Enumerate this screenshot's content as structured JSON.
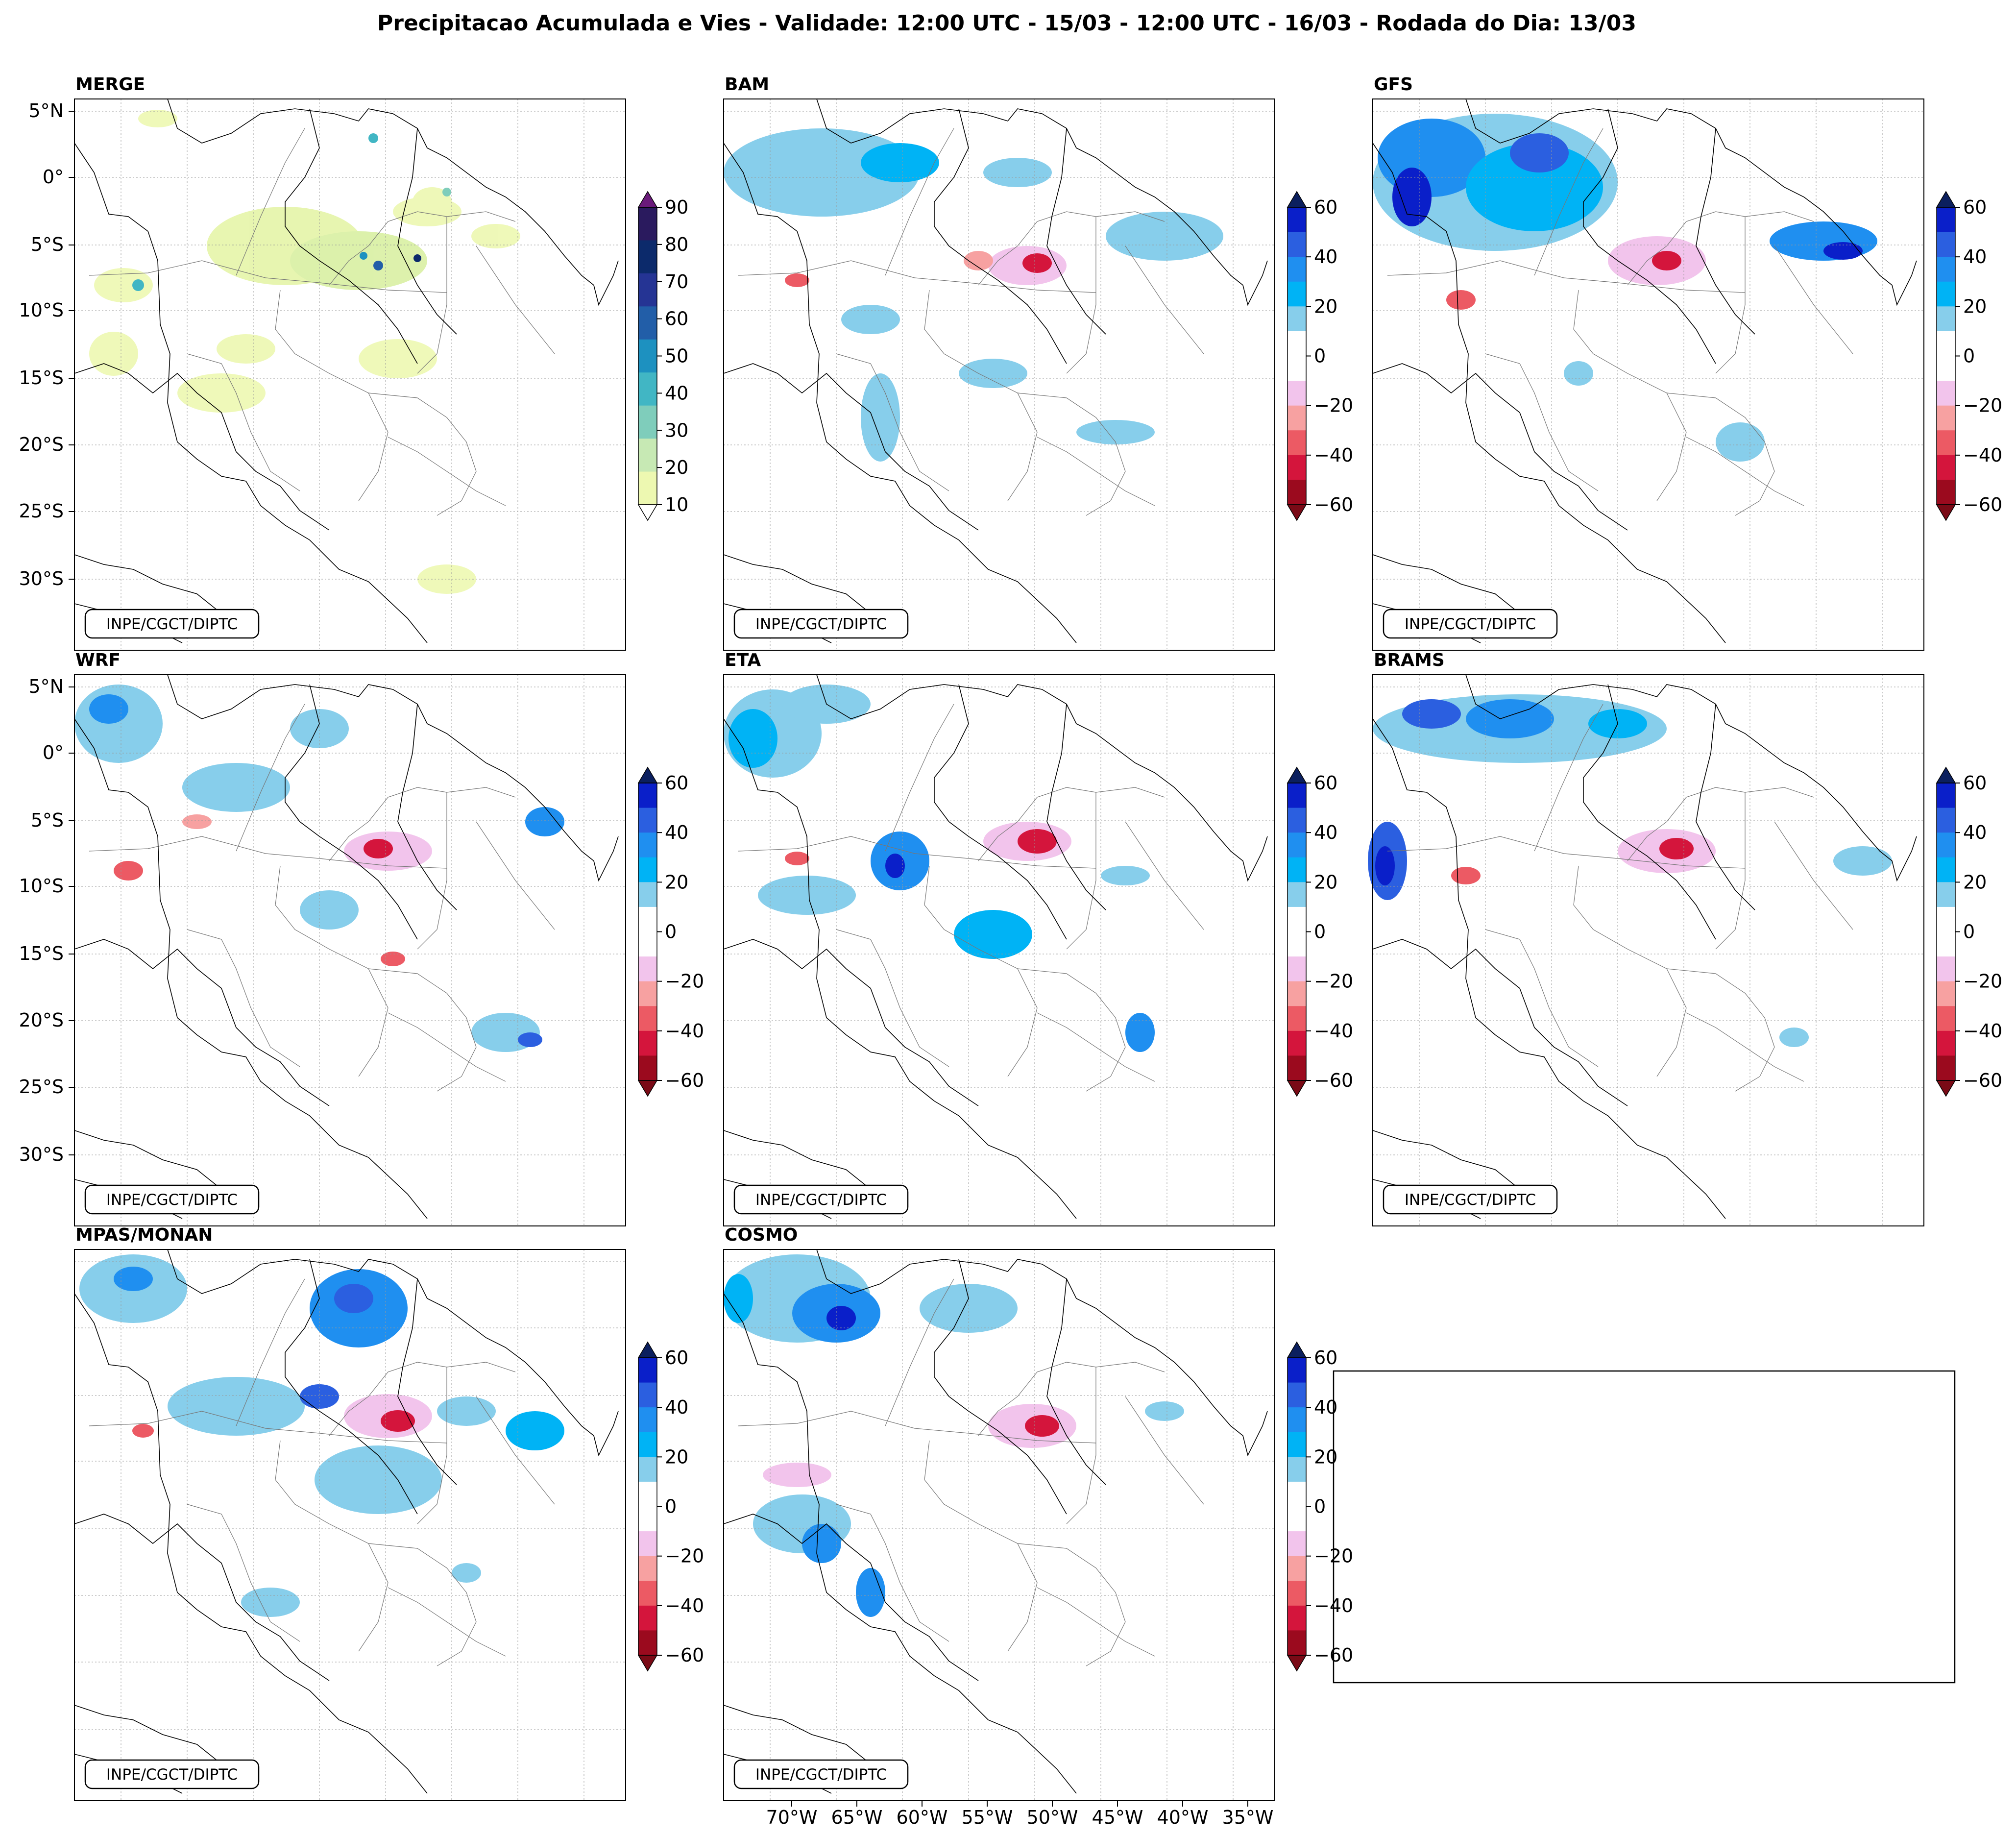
{
  "title": "Precipitacao Acumulada e Vies - Validade: 12:00 UTC - 15/03 - 12:00 UTC - 16/03 - Rodada do Dia: 13/03",
  "credit": "INPE/CGCT/DIPTC",
  "panels": [
    {
      "id": "merge",
      "title": "MERGE",
      "scale": "precip"
    },
    {
      "id": "bam",
      "title": "BAM",
      "scale": "bias"
    },
    {
      "id": "gfs",
      "title": "GFS",
      "scale": "bias"
    },
    {
      "id": "wrf",
      "title": "WRF",
      "scale": "bias"
    },
    {
      "id": "eta",
      "title": "ETA",
      "scale": "bias"
    },
    {
      "id": "brams",
      "title": "BRAMS",
      "scale": "bias"
    },
    {
      "id": "mpas",
      "title": "MPAS/MONAN",
      "scale": "bias"
    },
    {
      "id": "cosmo",
      "title": "COSMO",
      "scale": "bias"
    }
  ],
  "lat_labels": [
    "5°N",
    "0°",
    "5°S",
    "10°S",
    "15°S",
    "20°S",
    "25°S",
    "30°S"
  ],
  "lon_labels": [
    "70°W",
    "65°W",
    "60°W",
    "55°W",
    "50°W",
    "45°W",
    "40°W",
    "35°W"
  ],
  "precip_scale": {
    "ticks": [
      "90",
      "80",
      "70",
      "60",
      "50",
      "40",
      "30",
      "20",
      "10"
    ],
    "colors": [
      "#2a1a5e",
      "#0c2a6b",
      "#253494",
      "#225ea8",
      "#1d91c0",
      "#41b6c4",
      "#7fcdbb",
      "#c7e9b4",
      "#edf8b1"
    ],
    "top_arrow_color": "#6a1a7a"
  },
  "bias_scale": {
    "ticks": [
      "60",
      "40",
      "20",
      "0",
      "−20",
      "−40",
      "−60"
    ],
    "colors": [
      "#0a1fc9",
      "#2b5fe0",
      "#1f8ff0",
      "#00b3f5",
      "#87ceeb",
      "#ffffff",
      "#ffffff",
      "#f2c4ec",
      "#f7a1a1",
      "#ec5a64",
      "#d4153c",
      "#9b0a1e"
    ],
    "top_arrow_color": "#0b1f5e",
    "bottom_arrow_color": "#7a0a16"
  }
}
